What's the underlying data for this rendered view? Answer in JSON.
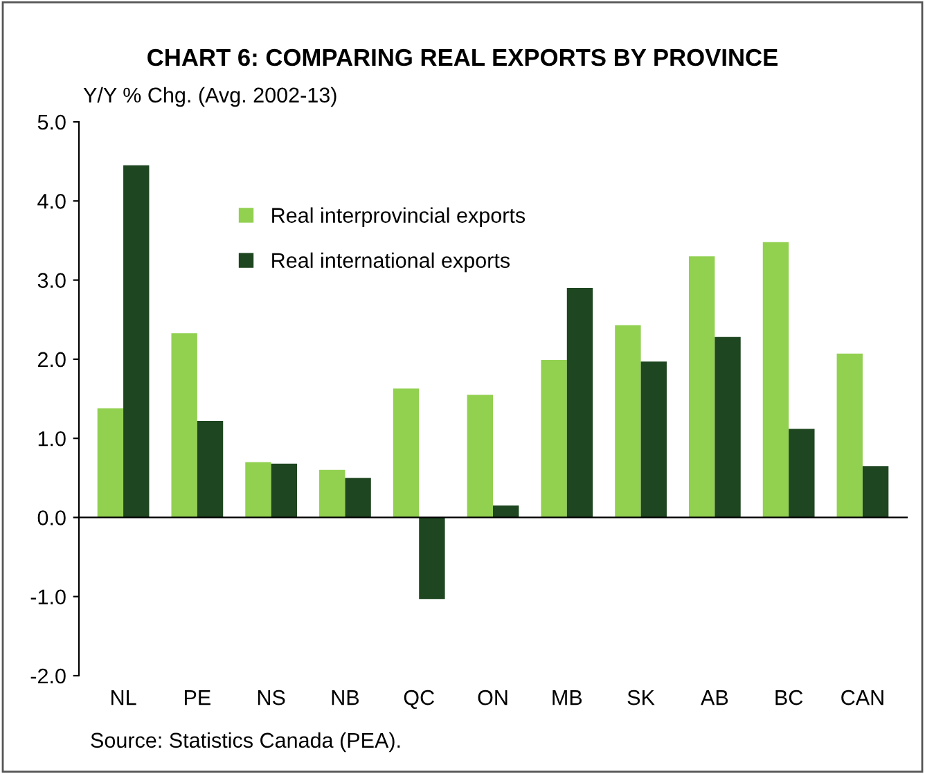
{
  "chart_data": {
    "type": "bar",
    "title": "CHART 6: COMPARING REAL EXPORTS BY PROVINCE",
    "ylabel": "Y/Y % Chg. (Avg. 2002-13)",
    "categories": [
      "NL",
      "PE",
      "NS",
      "NB",
      "QC",
      "ON",
      "MB",
      "SK",
      "AB",
      "BC",
      "CAN"
    ],
    "series": [
      {
        "name": "Real interprovincial exports",
        "color": "#92d050",
        "values": [
          1.38,
          2.33,
          0.7,
          0.6,
          1.63,
          1.55,
          1.99,
          2.43,
          3.3,
          3.48,
          2.07
        ]
      },
      {
        "name": "Real international exports",
        "color": "#1e4620",
        "values": [
          4.45,
          1.22,
          0.68,
          0.5,
          -1.03,
          0.15,
          2.9,
          1.97,
          2.28,
          1.12,
          0.65
        ]
      }
    ],
    "ylim": [
      -2,
      5
    ],
    "yticks": [
      {
        "value": -2,
        "label": "-2.0"
      },
      {
        "value": -1,
        "label": "-1.0"
      },
      {
        "value": 0,
        "label": "0.0"
      },
      {
        "value": 1,
        "label": "1.0"
      },
      {
        "value": 2,
        "label": "2.0"
      },
      {
        "value": 3,
        "label": "3.0"
      },
      {
        "value": 4,
        "label": "4.0"
      },
      {
        "value": 5,
        "label": "5.0"
      }
    ],
    "legend": "top left",
    "annotations": [
      "Source: Statistics Canada (PEA)."
    ]
  }
}
